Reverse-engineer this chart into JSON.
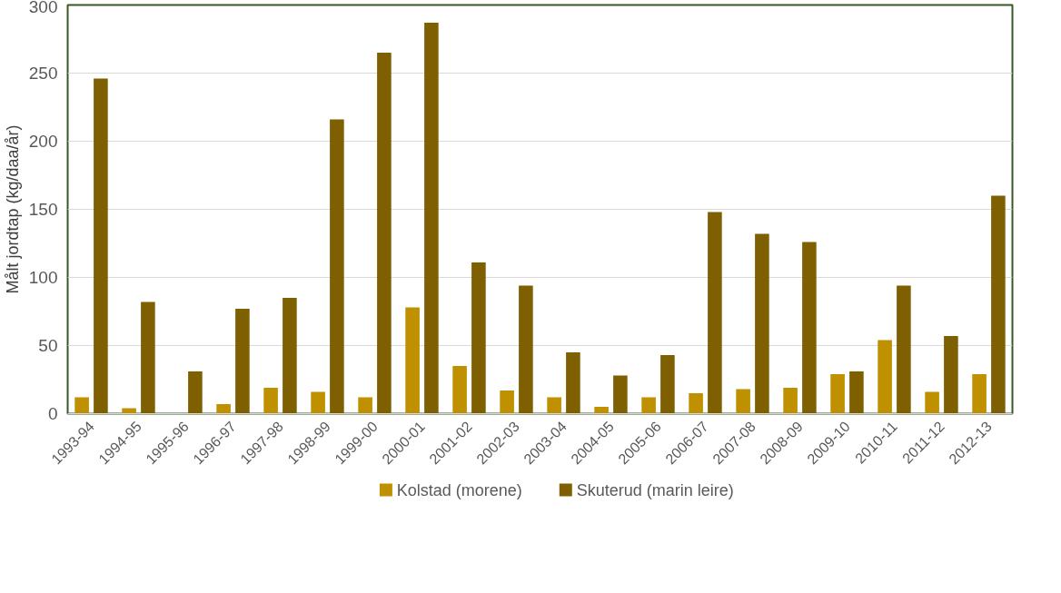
{
  "chart_data": {
    "type": "bar",
    "ylabel": "Målt jordtap (kg/daa/år)",
    "categories": [
      "1993-94",
      "1994-95",
      "1995-96",
      "1996-97",
      "1997-98",
      "1998-99",
      "1999-00",
      "2000-01",
      "2001-02",
      "2002-03",
      "2003-04",
      "2004-05",
      "2005-06",
      "2006-07",
      "2007-08",
      "2008-09",
      "2009-10",
      "2010-11",
      "2011-12",
      "2012-13"
    ],
    "series": [
      {
        "name": "Kolstad (morene)",
        "color": "#bf9000",
        "values": [
          12,
          4,
          0,
          7,
          19,
          16,
          12,
          78,
          35,
          17,
          12,
          5,
          12,
          15,
          18,
          19,
          29,
          54,
          16,
          29
        ]
      },
      {
        "name": "Skuterud (marin leire)",
        "color": "#7f6000",
        "values": [
          246,
          82,
          31,
          77,
          85,
          216,
          265,
          287,
          111,
          94,
          45,
          28,
          43,
          148,
          132,
          126,
          31,
          94,
          57,
          160
        ]
      }
    ],
    "ylim": [
      0,
      300
    ],
    "yticks": [
      0,
      50,
      100,
      150,
      200,
      250,
      300
    ],
    "grid": "y",
    "legend": "bottom"
  }
}
